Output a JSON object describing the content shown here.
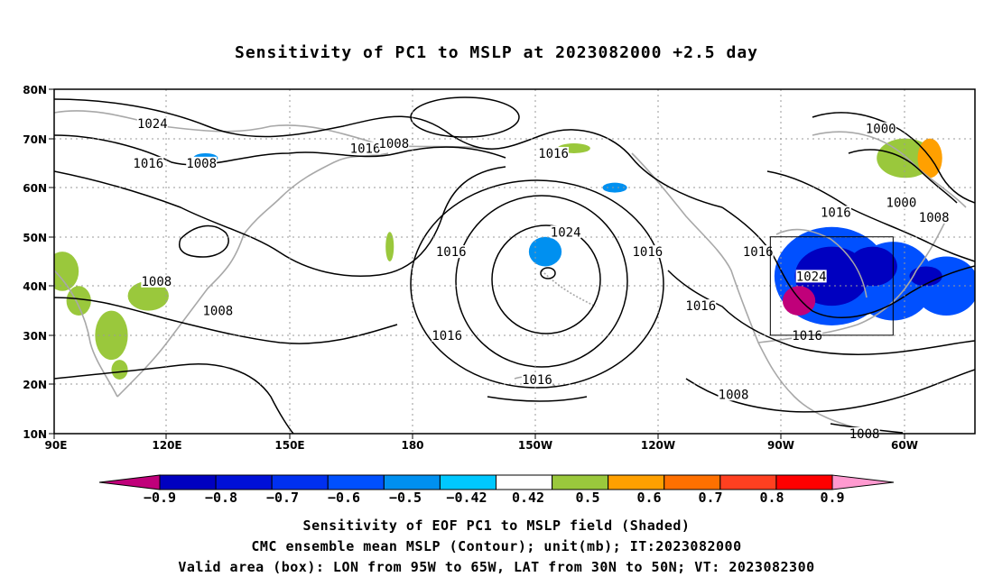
{
  "title": "Sensitivity of PC1 to MSLP at 2023082000 +2.5 day",
  "map": {
    "lat_labels": [
      "80N",
      "70N",
      "60N",
      "50N",
      "40N",
      "30N",
      "20N",
      "10N"
    ],
    "lon_labels": [
      "90E",
      "120E",
      "150E",
      "180",
      "150W",
      "120W",
      "90W",
      "60W"
    ],
    "contour_labels": [
      {
        "text": "1024",
        "lon": 114,
        "lat": 73
      },
      {
        "text": "1016",
        "lon": 113,
        "lat": 65
      },
      {
        "text": "1008",
        "lon": 126,
        "lat": 65
      },
      {
        "text": "1016",
        "lon": 166,
        "lat": 68
      },
      {
        "text": "1008",
        "lon": -187,
        "lat": 69
      },
      {
        "text": "1016",
        "lon": -148,
        "lat": 67
      },
      {
        "text": "1000",
        "lon": -68,
        "lat": 72
      },
      {
        "text": "1016",
        "lon": -79,
        "lat": 55
      },
      {
        "text": "1000",
        "lon": -63,
        "lat": 57
      },
      {
        "text": "1008",
        "lon": -55,
        "lat": 54
      },
      {
        "text": "1024",
        "lon": -145,
        "lat": 51
      },
      {
        "text": "1016",
        "lon": -125,
        "lat": 47
      },
      {
        "text": "1016",
        "lon": -98,
        "lat": 47
      },
      {
        "text": "1024",
        "lon": -85,
        "lat": 42
      },
      {
        "text": "1016",
        "lon": -173,
        "lat": 47
      },
      {
        "text": "1008",
        "lon": 115,
        "lat": 41
      },
      {
        "text": "1008",
        "lon": 130,
        "lat": 35
      },
      {
        "text": "1016",
        "lon": -174,
        "lat": 30
      },
      {
        "text": "1016",
        "lon": -112,
        "lat": 36
      },
      {
        "text": "1016",
        "lon": -86,
        "lat": 30
      },
      {
        "text": "1016",
        "lon": -152,
        "lat": 21
      },
      {
        "text": "1008",
        "lon": -104,
        "lat": 18
      },
      {
        "text": "1008",
        "lon": -72,
        "lat": 10
      }
    ],
    "valid_box": {
      "lon_min": -95,
      "lon_max": -65,
      "lat_min": 30,
      "lat_max": 50
    },
    "sensitivity_patches": [
      {
        "lon": -80,
        "lat": 42,
        "rx": 14,
        "ry": 10,
        "value": -0.6
      },
      {
        "lon": -65,
        "lat": 41,
        "rx": 10,
        "ry": 8,
        "value": -0.6
      },
      {
        "lon": -52,
        "lat": 40,
        "rx": 8,
        "ry": 6,
        "value": -0.6
      },
      {
        "lon": -80,
        "lat": 42,
        "rx": 9,
        "ry": 6,
        "value": -0.8
      },
      {
        "lon": -70,
        "lat": 44,
        "rx": 6,
        "ry": 4,
        "value": -0.8
      },
      {
        "lon": -88,
        "lat": 37,
        "rx": 4,
        "ry": 3,
        "value": -0.9
      },
      {
        "lon": -57,
        "lat": 42,
        "rx": 4,
        "ry": 2,
        "value": -0.8
      },
      {
        "lon": -150,
        "lat": 47,
        "rx": 4,
        "ry": 3,
        "value": -0.5
      },
      {
        "lon": -133,
        "lat": 60,
        "rx": 3,
        "ry": 1,
        "value": -0.5
      },
      {
        "lon": 127,
        "lat": 66,
        "rx": 3,
        "ry": 1,
        "value": -0.5
      },
      {
        "lon": 92,
        "lat": 43,
        "rx": 4,
        "ry": 4,
        "value": 0.6
      },
      {
        "lon": 96,
        "lat": 37,
        "rx": 3,
        "ry": 3,
        "value": 0.6
      },
      {
        "lon": 104,
        "lat": 30,
        "rx": 4,
        "ry": 5,
        "value": 0.6
      },
      {
        "lon": 113,
        "lat": 38,
        "rx": 5,
        "ry": 3,
        "value": 0.6
      },
      {
        "lon": 106,
        "lat": 23,
        "rx": 2,
        "ry": 2,
        "value": 0.6
      },
      {
        "lon": -143,
        "lat": 68,
        "rx": 4,
        "ry": 1,
        "value": 0.5
      },
      {
        "lon": -62,
        "lat": 66,
        "rx": 7,
        "ry": 4,
        "value": 0.6
      },
      {
        "lon": -56,
        "lat": 66,
        "rx": 3,
        "ry": 4,
        "value": 0.7
      },
      {
        "lon": 172,
        "lat": 48,
        "rx": 1,
        "ry": 3,
        "value": 0.6
      }
    ]
  },
  "colorbar": {
    "colors": [
      "#0000c0",
      "#0010d8",
      "#0030f0",
      "#0050ff",
      "#0090f0",
      "#00c8ff",
      "#ffffff",
      "#9ac83c",
      "#ffa000",
      "#ff7000",
      "#ff4020",
      "#ff0000"
    ],
    "under_color": "#c0007a",
    "over_color": "#ff9ad0",
    "labels": [
      "−0.9",
      "−0.8",
      "−0.7",
      "−0.6",
      "−0.5",
      "−0.42",
      "0.42",
      "0.5",
      "0.6",
      "0.7",
      "0.8",
      "0.9"
    ]
  },
  "caption": {
    "line1": "Sensitivity of EOF PC1 to MSLP field (Shaded)",
    "line2": "CMC ensemble mean MSLP (Contour); unit(mb); IT:2023082000",
    "line3": "Valid area (box): LON from 95W to 65W, LAT from 30N to 50N; VT: 2023082300"
  }
}
